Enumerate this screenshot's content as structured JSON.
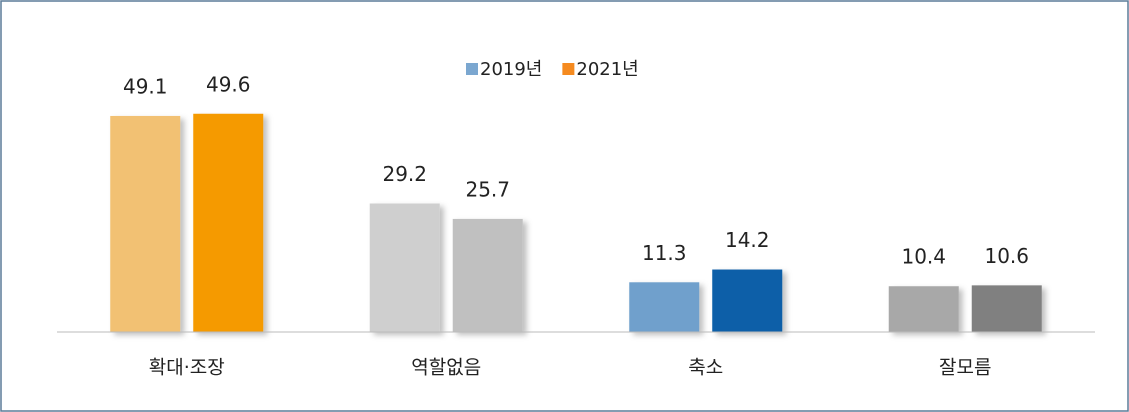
{
  "chart_data": {
    "type": "bar",
    "categories": [
      "확대·조장",
      "역할없음",
      "축소",
      "잘모름"
    ],
    "series": [
      {
        "name": "2019년",
        "color": "#7ba7d0",
        "values": [
          49.1,
          29.2,
          11.3,
          10.4
        ],
        "point_colors": [
          "#f2c173",
          "#cfcfcf",
          "#6fa0cc",
          "#a8a8a8"
        ]
      },
      {
        "name": "2021년",
        "color": "#f58a1f",
        "values": [
          49.6,
          25.7,
          14.2,
          10.6
        ],
        "point_colors": [
          "#f59a00",
          "#c0c0c0",
          "#0b5ea8",
          "#808080"
        ]
      }
    ],
    "value_labels": [
      [
        "49.1",
        "29.2",
        "11.3",
        "10.4"
      ],
      [
        "49.6",
        "25.7",
        "14.2",
        "10.6"
      ]
    ],
    "ylim": [
      0,
      60
    ],
    "legend": "top"
  }
}
